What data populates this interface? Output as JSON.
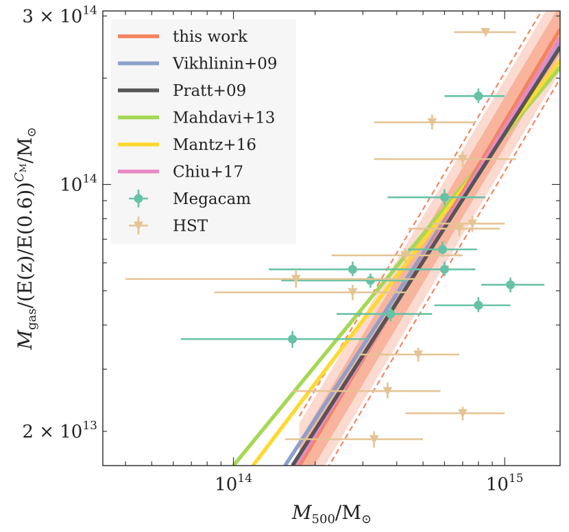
{
  "chart_data": {
    "type": "scatter",
    "title": "",
    "xlabel_main": "M",
    "xlabel_sub": "500",
    "xlabel_rest": "/M",
    "ylabel_main": "M",
    "ylabel_sub": "gas",
    "ylabel_rest": "/(E(z)/E(0.6))",
    "ylabel_exp": "C",
    "ylabel_exp_sub": "M",
    "ylabel_unit": "/M",
    "xscale": "log",
    "yscale": "log",
    "xlim": [
      33000000000000.0,
      1600000000000000.0
    ],
    "ylim": [
      16000000000000.0,
      310000000000000.0
    ],
    "x_ticks": [
      {
        "value": 100000000000000.0,
        "base": "10",
        "exp": "14"
      },
      {
        "value": 1000000000000000.0,
        "base": "10",
        "exp": "15"
      }
    ],
    "y_ticks": [
      {
        "value": 20000000000000.0,
        "mant": "2 × 10",
        "exp": "13"
      },
      {
        "value": 100000000000000.0,
        "mant": "10",
        "exp": "14"
      },
      {
        "value": 300000000000000.0,
        "mant": "3 × 10",
        "exp": "14"
      }
    ],
    "legend_position": "top-left",
    "relations": [
      {
        "name": "this work",
        "color": "#f4845f",
        "points": [
          [
            175000000000000.0,
            16000000000000.0
          ],
          [
            1600000000000000.0,
            275000000000000.0
          ]
        ],
        "band": 0.07,
        "band2": 0.12
      },
      {
        "name": "Vikhlinin+09",
        "color": "#8da0cb",
        "points": [
          [
            155000000000000.0,
            16000000000000.0
          ],
          [
            1600000000000000.0,
            252000000000000.0
          ]
        ]
      },
      {
        "name": "Pratt+09",
        "color": "#555555",
        "points": [
          [
            165000000000000.0,
            16000000000000.0
          ],
          [
            1600000000000000.0,
            245000000000000.0
          ]
        ]
      },
      {
        "name": "Mahdavi+13",
        "color": "#a6d854",
        "points": [
          [
            100000000000000.0,
            16000000000000.0
          ],
          [
            1600000000000000.0,
            215000000000000.0
          ]
        ]
      },
      {
        "name": "Mantz+16",
        "color": "#ffd92f",
        "points": [
          [
            118000000000000.0,
            16000000000000.0
          ],
          [
            1600000000000000.0,
            225000000000000.0
          ]
        ]
      },
      {
        "name": "Chiu+17",
        "color": "#e78ac3",
        "points": [
          [
            170000000000000.0,
            16000000000000.0
          ],
          [
            1600000000000000.0,
            260000000000000.0
          ]
        ]
      }
    ],
    "series": [
      {
        "name": "Megacam",
        "color": "#66c2a5",
        "marker": "circle",
        "points": [
          {
            "x": 800000000000000.0,
            "y": 178000000000000.0,
            "xlo": 600000000000000.0,
            "xhi": 1000000000000000.0,
            "ylo": 170000000000000.0,
            "yhi": 187000000000000.0
          },
          {
            "x": 600000000000000.0,
            "y": 92000000000000.0,
            "xlo": 370000000000000.0,
            "xhi": 850000000000000.0,
            "ylo": 87500000000000.0,
            "yhi": 97000000000000.0
          },
          {
            "x": 590000000000000.0,
            "y": 65500000000000.0,
            "xlo": 440000000000000.0,
            "xhi": 790000000000000.0,
            "ylo": 62500000000000.0,
            "yhi": 69000000000000.0
          },
          {
            "x": 275000000000000.0,
            "y": 57500000000000.0,
            "xlo": 135000000000000.0,
            "xhi": 530000000000000.0,
            "ylo": 55000000000000.0,
            "yhi": 60500000000000.0
          },
          {
            "x": 320000000000000.0,
            "y": 53500000000000.0,
            "xlo": 150000000000000.0,
            "xhi": 440000000000000.0,
            "ylo": 51000000000000.0,
            "yhi": 56000000000000.0
          },
          {
            "x": 600000000000000.0,
            "y": 57500000000000.0,
            "xlo": 430000000000000.0,
            "xhi": 780000000000000.0,
            "ylo": 55000000000000.0,
            "yhi": 60500000000000.0
          },
          {
            "x": 380000000000000.0,
            "y": 43000000000000.0,
            "xlo": 240000000000000.0,
            "xhi": 540000000000000.0,
            "ylo": 41000000000000.0,
            "yhi": 45000000000000.0
          },
          {
            "x": 800000000000000.0,
            "y": 45500000000000.0,
            "xlo": 550000000000000.0,
            "xhi": 1050000000000000.0,
            "ylo": 43500000000000.0,
            "yhi": 48000000000000.0
          },
          {
            "x": 1050000000000000.0,
            "y": 52000000000000.0,
            "xlo": 820000000000000.0,
            "xhi": 1400000000000000.0,
            "ylo": 49500000000000.0,
            "yhi": 54500000000000.0
          },
          {
            "x": 165000000000000.0,
            "y": 36500000000000.0,
            "xlo": 64000000000000.0,
            "xhi": 310000000000000.0,
            "ylo": 34500000000000.0,
            "yhi": 38500000000000.0
          }
        ]
      },
      {
        "name": "HST",
        "color": "#e5c494",
        "marker": "triangle-down",
        "points": [
          {
            "x": 850000000000000.0,
            "y": 270000000000000.0,
            "xlo": 650000000000000.0,
            "xhi": 1100000000000000.0,
            "ylo": 270000000000000.0,
            "yhi": 270000000000000.0
          },
          {
            "x": 540000000000000.0,
            "y": 150000000000000.0,
            "xlo": 330000000000000.0,
            "xhi": 780000000000000.0,
            "ylo": 143000000000000.0,
            "yhi": 158000000000000.0
          },
          {
            "x": 700000000000000.0,
            "y": 118000000000000.0,
            "xlo": 330000000000000.0,
            "xhi": 1100000000000000.0,
            "ylo": 112000000000000.0,
            "yhi": 124000000000000.0
          },
          {
            "x": 680000000000000.0,
            "y": 75000000000000.0,
            "xlo": 440000000000000.0,
            "xhi": 960000000000000.0,
            "ylo": 71500000000000.0,
            "yhi": 79000000000000.0
          },
          {
            "x": 760000000000000.0,
            "y": 77500000000000.0,
            "xlo": 540000000000000.0,
            "xhi": 1000000000000000.0,
            "ylo": 73500000000000.0,
            "yhi": 81500000000000.0
          },
          {
            "x": 430000000000000.0,
            "y": 63000000000000.0,
            "xlo": 230000000000000.0,
            "xhi": 700000000000000.0,
            "ylo": 60000000000000.0,
            "yhi": 66000000000000.0
          },
          {
            "x": 170000000000000.0,
            "y": 54000000000000.0,
            "xlo": 40000000000000.0,
            "xhi": 500000000000000.0,
            "ylo": 51000000000000.0,
            "yhi": 57000000000000.0
          },
          {
            "x": 275000000000000.0,
            "y": 49500000000000.0,
            "xlo": 85000000000000.0,
            "xhi": 450000000000000.0,
            "ylo": 47000000000000.0,
            "yhi": 52000000000000.0
          },
          {
            "x": 480000000000000.0,
            "y": 33000000000000.0,
            "xlo": 290000000000000.0,
            "xhi": 680000000000000.0,
            "ylo": 31500000000000.0,
            "yhi": 34500000000000.0
          },
          {
            "x": 370000000000000.0,
            "y": 26000000000000.0,
            "xlo": 165000000000000.0,
            "xhi": 580000000000000.0,
            "ylo": 24800000000000.0,
            "yhi": 27500000000000.0
          },
          {
            "x": 700000000000000.0,
            "y": 22500000000000.0,
            "xlo": 430000000000000.0,
            "xhi": 1000000000000000.0,
            "ylo": 21500000000000.0,
            "yhi": 23500000000000.0
          },
          {
            "x": 330000000000000.0,
            "y": 19000000000000.0,
            "xlo": 155000000000000.0,
            "xhi": 500000000000000.0,
            "ylo": 18000000000000.0,
            "yhi": 20000000000000.0
          }
        ]
      }
    ]
  }
}
